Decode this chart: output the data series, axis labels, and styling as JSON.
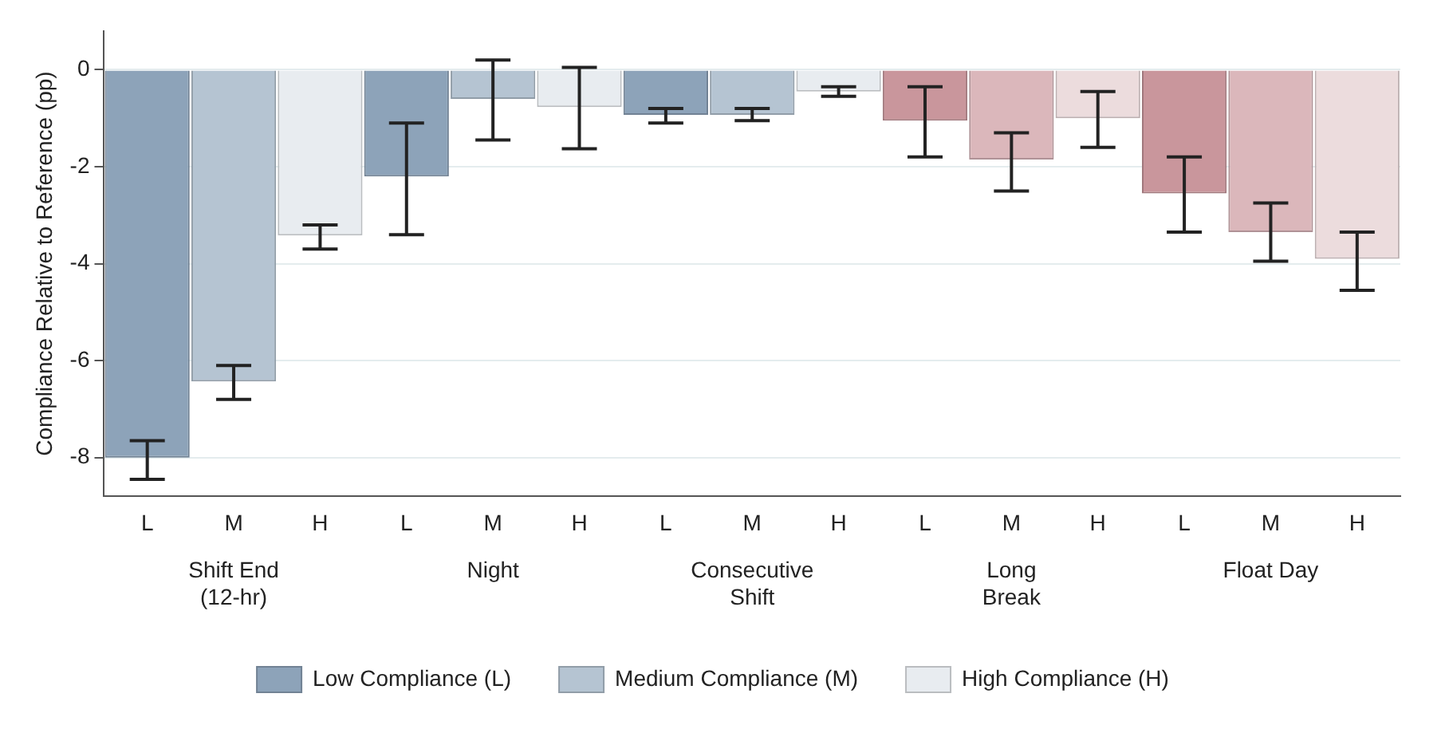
{
  "chart_data": {
    "type": "bar",
    "ylabel": "Compliance Relative to Reference (pp)",
    "categories": [
      "L",
      "M",
      "H",
      "L",
      "M",
      "H",
      "L",
      "M",
      "H",
      "L",
      "M",
      "H",
      "L",
      "M",
      "H"
    ],
    "annotations": [
      "Shift End (12-hr)",
      "Night",
      "Consecutive Shift",
      "Long Break",
      "Float Day"
    ],
    "series": [
      {
        "name": "Low Compliance (L)",
        "color": "#8da3b9",
        "colors": [
          "#8da3b9",
          null,
          null,
          "#8da3b9",
          null,
          null,
          "#8da3b9",
          null,
          null,
          "#c9969c",
          null,
          null,
          "#c9969c",
          null,
          null
        ],
        "values": [
          -8.0,
          null,
          null,
          -2.2,
          null,
          null,
          -0.93,
          null,
          null,
          -1.05,
          null,
          null,
          -2.55,
          null,
          null
        ],
        "errors": [
          [
            -8.45,
            -7.65
          ],
          null,
          null,
          [
            -3.4,
            -1.1
          ],
          null,
          null,
          [
            -1.1,
            -0.8
          ],
          null,
          null,
          [
            -1.8,
            -0.35
          ],
          null,
          null,
          [
            -3.35,
            -1.8
          ],
          null,
          null
        ]
      },
      {
        "name": "Medium Compliance (M)",
        "color": "#b5c4d2",
        "colors": [
          null,
          "#b5c4d2",
          null,
          null,
          "#b5c4d2",
          null,
          null,
          "#b5c4d2",
          null,
          null,
          "#dbb7bb",
          null,
          null,
          "#dbb7bb",
          null
        ],
        "values": [
          null,
          -6.43,
          null,
          null,
          -0.6,
          null,
          null,
          -0.93,
          null,
          null,
          -1.85,
          null,
          null,
          -3.35,
          null
        ],
        "errors": [
          null,
          [
            -6.8,
            -6.1
          ],
          null,
          null,
          [
            -1.45,
            0.2
          ],
          null,
          null,
          [
            -1.05,
            -0.8
          ],
          null,
          null,
          [
            -2.5,
            -1.3
          ],
          null,
          null,
          [
            -3.95,
            -2.75
          ],
          null
        ]
      },
      {
        "name": "High Compliance (H)",
        "color": "#e8ecf0",
        "colors": [
          null,
          null,
          "#e8ecf0",
          null,
          null,
          "#e8ecf0",
          null,
          null,
          "#e8ecf0",
          null,
          null,
          "#ecdcdd",
          null,
          null,
          "#ecdcdd"
        ],
        "values": [
          null,
          null,
          -3.42,
          null,
          null,
          -0.77,
          null,
          null,
          -0.45,
          null,
          null,
          -1.0,
          null,
          null,
          -3.9
        ],
        "errors": [
          null,
          null,
          [
            -3.7,
            -3.2
          ],
          null,
          null,
          [
            -1.63,
            0.05
          ],
          null,
          null,
          [
            -0.55,
            -0.35
          ],
          null,
          null,
          [
            -1.6,
            -0.45
          ],
          null,
          null,
          [
            -4.55,
            -3.35
          ]
        ]
      }
    ],
    "ylim": [
      -8.8,
      0.8
    ],
    "yticks": [
      0,
      -2,
      -4,
      -6,
      -8
    ],
    "grid": "y",
    "legend": "bottom"
  }
}
